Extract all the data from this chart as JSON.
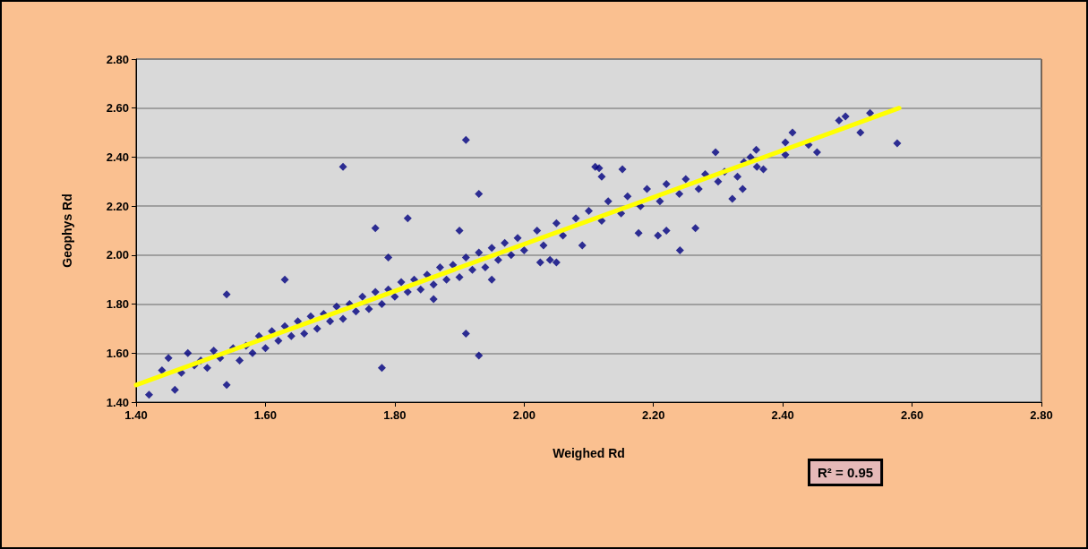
{
  "chart_data": {
    "type": "scatter",
    "xlabel": "Weighed Rd",
    "ylabel": "Geophys Rd",
    "annotations": [
      "R² = 0.95"
    ],
    "xlim": [
      1.4,
      2.8
    ],
    "ylim": [
      1.4,
      2.8
    ],
    "xticks": [
      {
        "value": 1.4,
        "label": "1.40"
      },
      {
        "value": 1.6,
        "label": "1.60"
      },
      {
        "value": 1.8,
        "label": "1.80"
      },
      {
        "value": 2.0,
        "label": "2.00"
      },
      {
        "value": 2.2,
        "label": "2.20"
      },
      {
        "value": 2.4,
        "label": "2.40"
      },
      {
        "value": 2.6,
        "label": "2.60"
      },
      {
        "value": 2.8,
        "label": "2.80"
      }
    ],
    "yticks": [
      {
        "value": 1.4,
        "label": "1.40"
      },
      {
        "value": 1.6,
        "label": "1.60"
      },
      {
        "value": 1.8,
        "label": "1.80"
      },
      {
        "value": 2.0,
        "label": "2.00"
      },
      {
        "value": 2.2,
        "label": "2.20"
      },
      {
        "value": 2.4,
        "label": "2.40"
      },
      {
        "value": 2.6,
        "label": "2.60"
      },
      {
        "value": 2.8,
        "label": "2.80"
      }
    ],
    "grid": "y",
    "series": [
      {
        "color": "#000080",
        "marker": "diamond",
        "x": [
          1.42,
          1.46,
          1.44,
          1.45,
          1.47,
          1.48,
          1.49,
          1.5,
          1.51,
          1.52,
          1.53,
          1.54,
          1.54,
          1.55,
          1.56,
          1.57,
          1.58,
          1.59,
          1.6,
          1.61,
          1.62,
          1.63,
          1.63,
          1.64,
          1.65,
          1.66,
          1.67,
          1.68,
          1.69,
          1.7,
          1.71,
          1.72,
          1.72,
          1.73,
          1.74,
          1.75,
          1.76,
          1.77,
          1.77,
          1.78,
          1.78,
          1.79,
          1.79,
          1.8,
          1.81,
          1.82,
          1.82,
          1.83,
          1.84,
          1.85,
          1.86,
          1.86,
          1.87,
          1.88,
          1.89,
          1.9,
          1.9,
          1.91,
          1.91,
          1.91,
          1.92,
          1.93,
          1.93,
          1.93,
          1.94,
          1.95,
          1.95,
          1.96,
          1.97,
          1.98,
          1.99,
          2.0,
          2.02,
          2.025,
          2.03,
          2.04,
          2.05,
          2.05,
          2.06,
          2.08,
          2.09,
          2.1,
          2.11,
          2.116,
          2.12,
          2.12,
          2.13,
          2.15,
          2.152,
          2.16,
          2.177,
          2.18,
          2.19,
          2.207,
          2.21,
          2.22,
          2.22,
          2.24,
          2.241,
          2.25,
          2.265,
          2.27,
          2.28,
          2.296,
          2.3,
          2.31,
          2.322,
          2.33,
          2.338,
          2.34,
          2.35,
          2.359,
          2.36,
          2.37,
          2.404,
          2.404,
          2.415,
          2.44,
          2.453,
          2.487,
          2.497,
          2.52,
          2.535,
          2.577
        ],
        "values": [
          1.43,
          1.45,
          1.53,
          1.58,
          1.52,
          1.6,
          1.55,
          1.57,
          1.54,
          1.61,
          1.58,
          1.84,
          1.47,
          1.62,
          1.57,
          1.63,
          1.6,
          1.67,
          1.62,
          1.69,
          1.65,
          1.71,
          1.9,
          1.67,
          1.73,
          1.68,
          1.75,
          1.7,
          1.76,
          1.73,
          1.79,
          1.74,
          2.36,
          1.8,
          1.77,
          1.83,
          1.78,
          1.85,
          2.11,
          1.8,
          1.54,
          1.86,
          1.99,
          1.83,
          1.89,
          1.85,
          2.15,
          1.9,
          1.86,
          1.92,
          1.88,
          1.82,
          1.95,
          1.9,
          1.96,
          1.91,
          2.1,
          1.99,
          2.47,
          1.68,
          1.94,
          2.01,
          2.25,
          1.59,
          1.95,
          2.03,
          1.9,
          1.98,
          2.05,
          2.0,
          2.07,
          2.02,
          2.1,
          1.97,
          2.04,
          1.98,
          2.13,
          1.97,
          2.08,
          2.15,
          2.04,
          2.18,
          2.36,
          2.355,
          2.14,
          2.32,
          2.22,
          2.17,
          2.35,
          2.24,
          2.09,
          2.2,
          2.27,
          2.08,
          2.22,
          2.29,
          2.1,
          2.25,
          2.02,
          2.31,
          2.11,
          2.27,
          2.33,
          2.42,
          2.3,
          2.34,
          2.23,
          2.32,
          2.27,
          2.38,
          2.4,
          2.43,
          2.36,
          2.35,
          2.46,
          2.41,
          2.5,
          2.45,
          2.42,
          2.55,
          2.566,
          2.5,
          2.58,
          2.456
        ]
      },
      {
        "type": "line",
        "marker": "none",
        "color": "#ffff00",
        "x": [
          1.4,
          2.58
        ],
        "values": [
          1.47,
          2.6
        ]
      }
    ]
  }
}
